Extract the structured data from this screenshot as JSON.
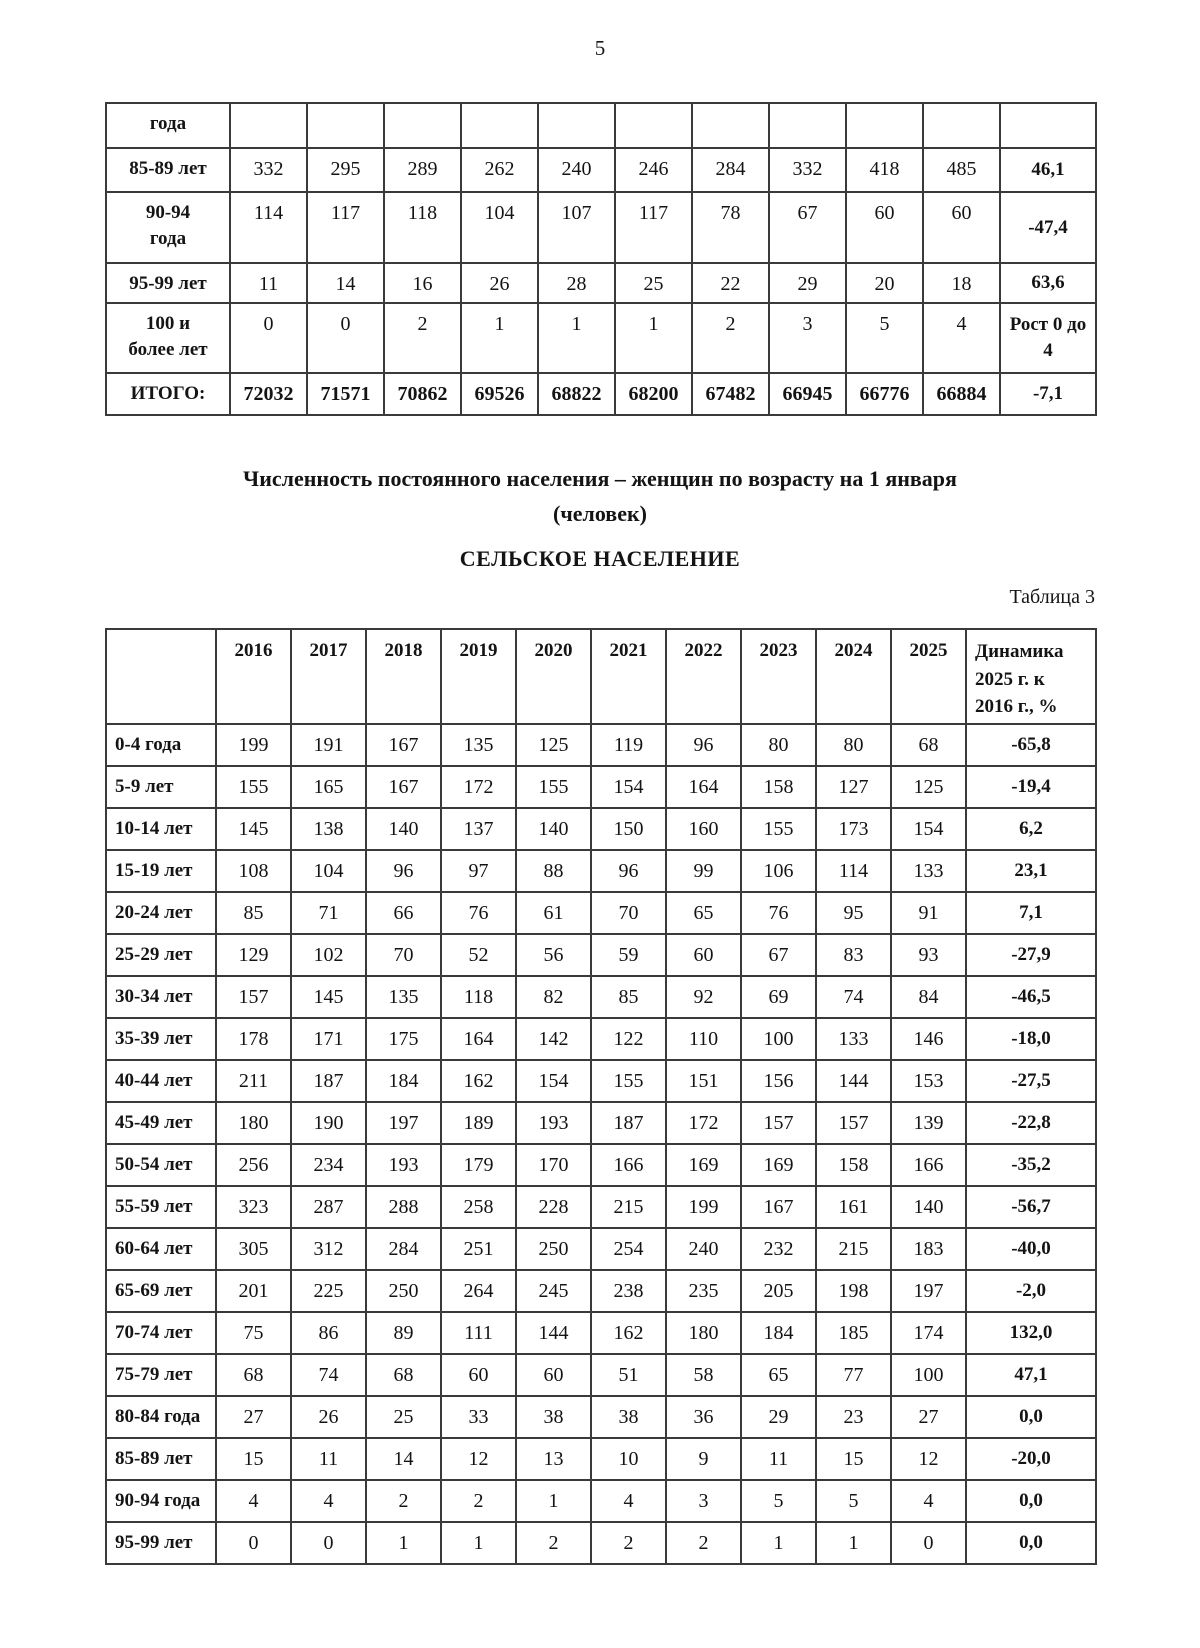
{
  "page": {
    "number": "5"
  },
  "table1": {
    "rows": [
      {
        "label": "года",
        "values": [
          "",
          "",
          "",
          "",
          "",
          "",
          "",
          "",
          "",
          ""
        ],
        "dynamics": ""
      },
      {
        "label": "85-89 лет",
        "values": [
          "332",
          "295",
          "289",
          "262",
          "240",
          "246",
          "284",
          "332",
          "418",
          "485"
        ],
        "dynamics": "46,1"
      },
      {
        "label": "90-94\nгода",
        "values": [
          "114",
          "117",
          "118",
          "104",
          "107",
          "117",
          "78",
          "67",
          "60",
          "60"
        ],
        "dynamics": "-47,4"
      },
      {
        "label": "95-99 лет",
        "values": [
          "11",
          "14",
          "16",
          "26",
          "28",
          "25",
          "22",
          "29",
          "20",
          "18"
        ],
        "dynamics": "63,6"
      },
      {
        "label": "100 и\nболее лет",
        "values": [
          "0",
          "0",
          "2",
          "1",
          "1",
          "1",
          "2",
          "3",
          "5",
          "4"
        ],
        "dynamics": "Рост 0 до\n4"
      },
      {
        "label": "ИТОГО:",
        "values": [
          "72032",
          "71571",
          "70862",
          "69526",
          "68822",
          "68200",
          "67482",
          "66945",
          "66776",
          "66884"
        ],
        "dynamics": "-7,1",
        "bold": true
      }
    ]
  },
  "heading": {
    "title": "Численность постоянного населения – женщин по возрасту на 1 января",
    "subtitle": "(человек)",
    "section": "СЕЛЬСКОЕ НАСЕЛЕНИЕ"
  },
  "table3": {
    "caption": "Таблица 3",
    "header": {
      "years": [
        "2016",
        "2017",
        "2018",
        "2019",
        "2020",
        "2021",
        "2022",
        "2023",
        "2024",
        "2025"
      ],
      "dynamics": "Динамика\n2025 г. к\n2016 г., %"
    },
    "rows": [
      {
        "label": "0-4 года",
        "values": [
          "199",
          "191",
          "167",
          "135",
          "125",
          "119",
          "96",
          "80",
          "80",
          "68"
        ],
        "dynamics": "-65,8"
      },
      {
        "label": "5-9 лет",
        "values": [
          "155",
          "165",
          "167",
          "172",
          "155",
          "154",
          "164",
          "158",
          "127",
          "125"
        ],
        "dynamics": "-19,4"
      },
      {
        "label": "10-14 лет",
        "values": [
          "145",
          "138",
          "140",
          "137",
          "140",
          "150",
          "160",
          "155",
          "173",
          "154"
        ],
        "dynamics": "6,2"
      },
      {
        "label": "15-19 лет",
        "values": [
          "108",
          "104",
          "96",
          "97",
          "88",
          "96",
          "99",
          "106",
          "114",
          "133"
        ],
        "dynamics": "23,1"
      },
      {
        "label": "20-24 лет",
        "values": [
          "85",
          "71",
          "66",
          "76",
          "61",
          "70",
          "65",
          "76",
          "95",
          "91"
        ],
        "dynamics": "7,1"
      },
      {
        "label": "25-29 лет",
        "values": [
          "129",
          "102",
          "70",
          "52",
          "56",
          "59",
          "60",
          "67",
          "83",
          "93"
        ],
        "dynamics": "-27,9"
      },
      {
        "label": "30-34 лет",
        "values": [
          "157",
          "145",
          "135",
          "118",
          "82",
          "85",
          "92",
          "69",
          "74",
          "84"
        ],
        "dynamics": "-46,5"
      },
      {
        "label": "35-39 лет",
        "values": [
          "178",
          "171",
          "175",
          "164",
          "142",
          "122",
          "110",
          "100",
          "133",
          "146"
        ],
        "dynamics": "-18,0"
      },
      {
        "label": "40-44 лет",
        "values": [
          "211",
          "187",
          "184",
          "162",
          "154",
          "155",
          "151",
          "156",
          "144",
          "153"
        ],
        "dynamics": "-27,5"
      },
      {
        "label": "45-49 лет",
        "values": [
          "180",
          "190",
          "197",
          "189",
          "193",
          "187",
          "172",
          "157",
          "157",
          "139"
        ],
        "dynamics": "-22,8"
      },
      {
        "label": "50-54 лет",
        "values": [
          "256",
          "234",
          "193",
          "179",
          "170",
          "166",
          "169",
          "169",
          "158",
          "166"
        ],
        "dynamics": "-35,2"
      },
      {
        "label": "55-59 лет",
        "values": [
          "323",
          "287",
          "288",
          "258",
          "228",
          "215",
          "199",
          "167",
          "161",
          "140"
        ],
        "dynamics": "-56,7"
      },
      {
        "label": "60-64 лет",
        "values": [
          "305",
          "312",
          "284",
          "251",
          "250",
          "254",
          "240",
          "232",
          "215",
          "183"
        ],
        "dynamics": "-40,0"
      },
      {
        "label": "65-69 лет",
        "values": [
          "201",
          "225",
          "250",
          "264",
          "245",
          "238",
          "235",
          "205",
          "198",
          "197"
        ],
        "dynamics": "-2,0"
      },
      {
        "label": "70-74 лет",
        "values": [
          "75",
          "86",
          "89",
          "111",
          "144",
          "162",
          "180",
          "184",
          "185",
          "174"
        ],
        "dynamics": "132,0"
      },
      {
        "label": "75-79 лет",
        "values": [
          "68",
          "74",
          "68",
          "60",
          "60",
          "51",
          "58",
          "65",
          "77",
          "100"
        ],
        "dynamics": "47,1"
      },
      {
        "label": "80-84 года",
        "values": [
          "27",
          "26",
          "25",
          "33",
          "38",
          "38",
          "36",
          "29",
          "23",
          "27"
        ],
        "dynamics": "0,0"
      },
      {
        "label": "85-89 лет",
        "values": [
          "15",
          "11",
          "14",
          "12",
          "13",
          "10",
          "9",
          "11",
          "15",
          "12"
        ],
        "dynamics": "-20,0"
      },
      {
        "label": "90-94 года",
        "values": [
          "4",
          "4",
          "2",
          "2",
          "1",
          "4",
          "3",
          "5",
          "5",
          "4"
        ],
        "dynamics": "0,0"
      },
      {
        "label": "95-99 лет",
        "values": [
          "0",
          "0",
          "1",
          "1",
          "2",
          "2",
          "2",
          "1",
          "1",
          "0"
        ],
        "dynamics": "0,0"
      }
    ]
  }
}
